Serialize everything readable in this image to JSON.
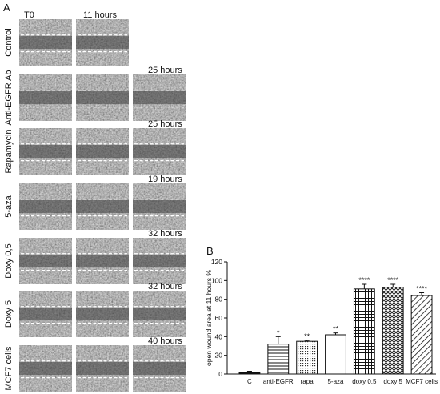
{
  "panel_a": {
    "label": "A",
    "col_labels": [
      "T0",
      "11 hours"
    ],
    "rows": [
      {
        "label": "Control",
        "time": "",
        "images": 2
      },
      {
        "label": "Anti-EGFR Ab",
        "time": "25 hours",
        "images": 3
      },
      {
        "label": "Rapamycin",
        "time": "25 hours",
        "images": 3
      },
      {
        "label": "5-aza",
        "time": "19 hours",
        "images": 3
      },
      {
        "label": "Doxy 0,5",
        "time": "32 hours",
        "images": 3
      },
      {
        "label": "Doxy 5",
        "time": "32 hours",
        "images": 3
      },
      {
        "label": "MCF7 cells",
        "time": "40 hours",
        "images": 3
      }
    ]
  },
  "panel_b": {
    "label": "B",
    "chart_data": {
      "type": "bar",
      "title": "",
      "xlabel": "",
      "ylabel": "open wound area at 11 hours %",
      "ylim": [
        0,
        120
      ],
      "yticks": [
        0,
        20,
        40,
        60,
        80,
        100,
        120
      ],
      "grid": false,
      "categories": [
        "C",
        "anti-EGFR",
        "rapa",
        "5-aza",
        "doxy 0,5",
        "doxy 5",
        "MCF7 cells"
      ],
      "values": [
        2,
        32,
        35,
        42,
        91,
        93,
        84
      ],
      "errors": [
        1,
        8,
        1,
        2,
        5,
        3,
        3
      ],
      "significance": [
        "",
        "*",
        "**",
        "**",
        "****",
        "****",
        "****"
      ],
      "patterns": [
        "solid",
        "hlines",
        "dots",
        "open",
        "grid",
        "crosshatch",
        "diagonal"
      ]
    }
  }
}
